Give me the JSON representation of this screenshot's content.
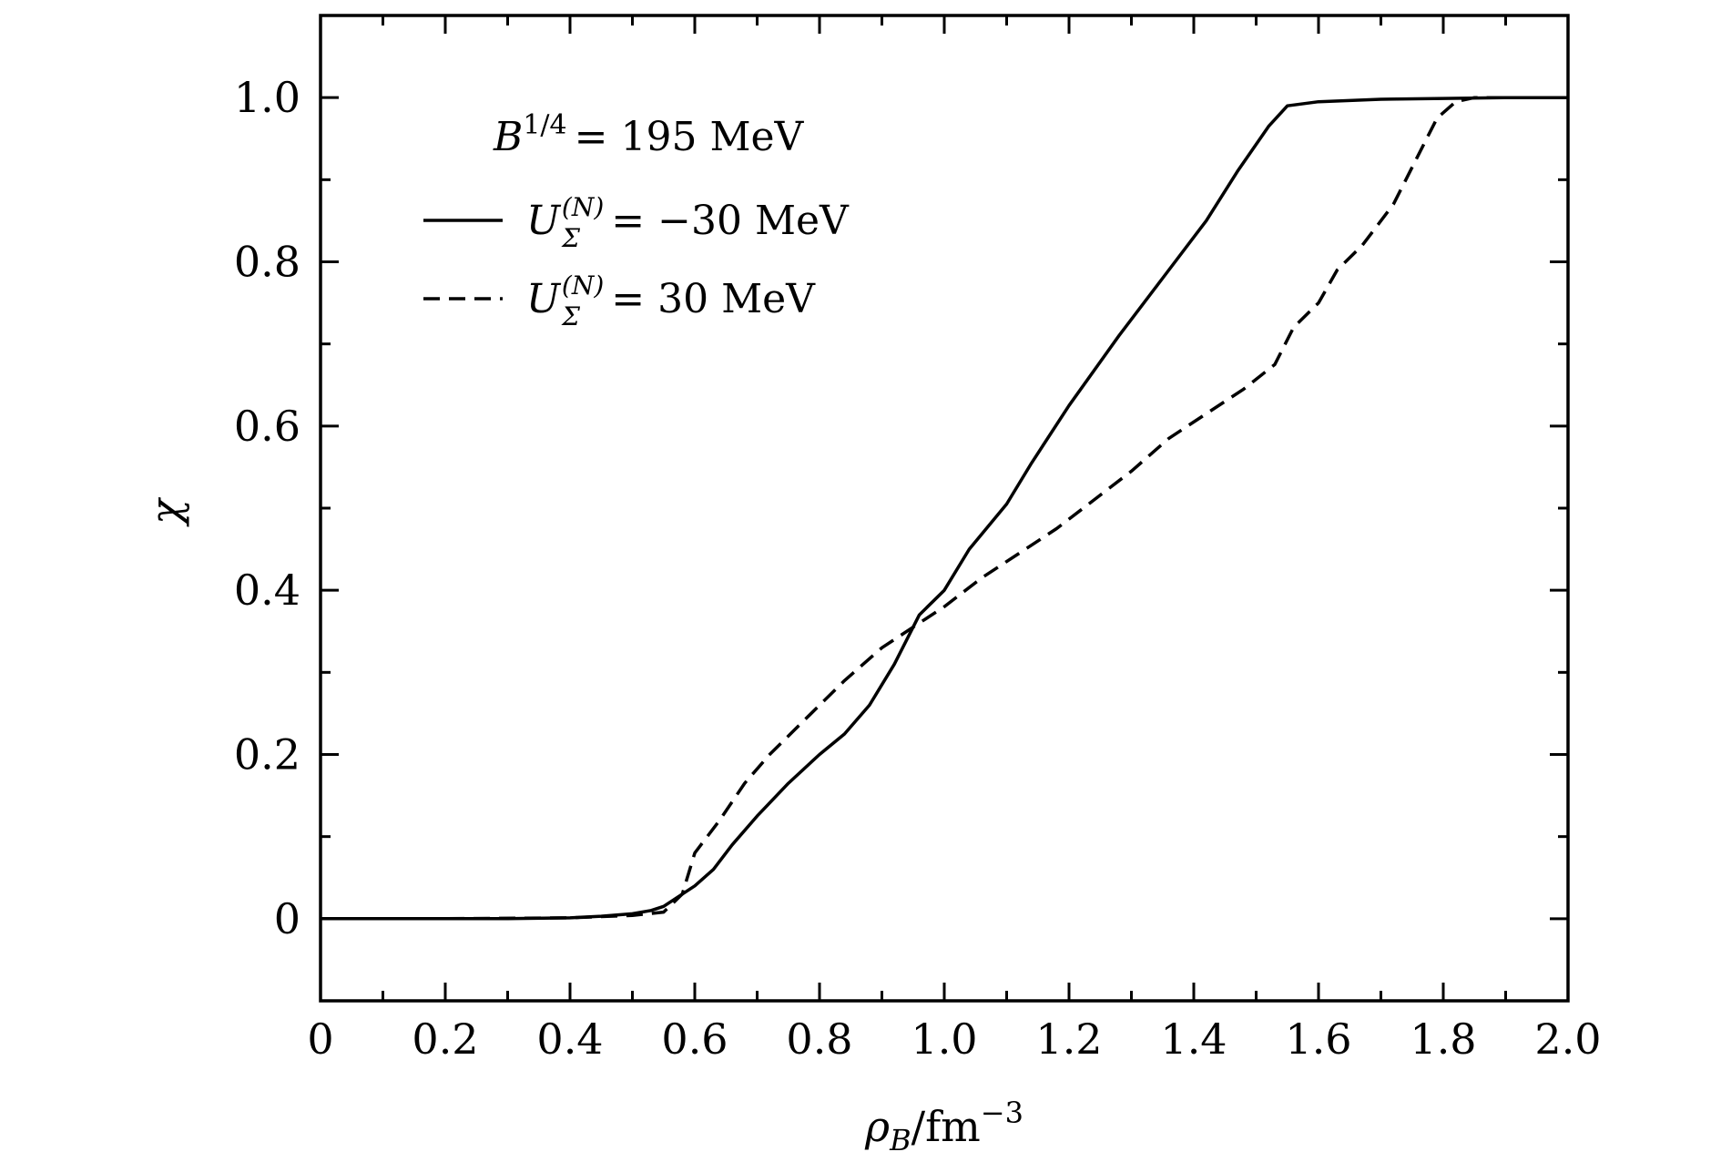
{
  "chart_data": {
    "type": "line",
    "xlabel": "ρB/fm−3",
    "xlabel_main": "ρ",
    "xlabel_sub": "B",
    "xlabel_unit": "/fm",
    "xlabel_sup": "−3",
    "ylabel": "χ",
    "xlim": [
      0,
      2.0
    ],
    "ylim": [
      -0.1,
      1.1
    ],
    "xticks": [
      {
        "value": 0,
        "label": "0"
      },
      {
        "value": 0.2,
        "label": "0.2"
      },
      {
        "value": 0.4,
        "label": "0.4"
      },
      {
        "value": 0.6,
        "label": "0.6"
      },
      {
        "value": 0.8,
        "label": "0.8"
      },
      {
        "value": 1.0,
        "label": "1.0"
      },
      {
        "value": 1.2,
        "label": "1.2"
      },
      {
        "value": 1.4,
        "label": "1.4"
      },
      {
        "value": 1.6,
        "label": "1.6"
      },
      {
        "value": 1.8,
        "label": "1.8"
      },
      {
        "value": 2.0,
        "label": "2.0"
      }
    ],
    "yticks": [
      {
        "value": 0,
        "label": "0"
      },
      {
        "value": 0.2,
        "label": "0.2"
      },
      {
        "value": 0.4,
        "label": "0.4"
      },
      {
        "value": 0.6,
        "label": "0.6"
      },
      {
        "value": 0.8,
        "label": "0.8"
      },
      {
        "value": 1.0,
        "label": "1.0"
      }
    ],
    "x_minor_step": 0.1,
    "y_minor_step": 0.1,
    "legend": {
      "title_main": "B",
      "title_sup": "1/4",
      "title_rest": "= 195 MeV",
      "placement": "top-left"
    },
    "series": [
      {
        "name": "UΣ(N) = −30 MeV",
        "label_main": "U",
        "label_sub": "Σ",
        "label_sup": "(N)",
        "label_rest": "= −30 MeV",
        "style": "solid",
        "x": [
          0,
          0.1,
          0.2,
          0.3,
          0.4,
          0.45,
          0.5,
          0.53,
          0.55,
          0.6,
          0.63,
          0.66,
          0.7,
          0.75,
          0.8,
          0.84,
          0.88,
          0.92,
          0.96,
          1.0,
          1.04,
          1.1,
          1.14,
          1.2,
          1.28,
          1.35,
          1.42,
          1.47,
          1.52,
          1.55,
          1.6,
          1.7,
          1.8,
          1.9,
          2.0
        ],
        "y": [
          0,
          0,
          0,
          0,
          0.001,
          0.003,
          0.006,
          0.01,
          0.015,
          0.04,
          0.06,
          0.09,
          0.125,
          0.165,
          0.2,
          0.225,
          0.26,
          0.31,
          0.37,
          0.4,
          0.45,
          0.505,
          0.555,
          0.625,
          0.71,
          0.78,
          0.85,
          0.91,
          0.965,
          0.99,
          0.995,
          0.998,
          0.999,
          1.0,
          1.0
        ]
      },
      {
        "name": "UΣ(N) = 30 MeV",
        "label_main": "U",
        "label_sub": "Σ",
        "label_sup": "(N)",
        "label_rest": "= 30 MeV",
        "style": "dashed",
        "x": [
          0,
          0.2,
          0.4,
          0.5,
          0.55,
          0.58,
          0.6,
          0.64,
          0.68,
          0.72,
          0.78,
          0.84,
          0.9,
          0.96,
          1.0,
          1.06,
          1.12,
          1.18,
          1.24,
          1.3,
          1.36,
          1.42,
          1.48,
          1.53,
          1.56,
          1.6,
          1.63,
          1.67,
          1.72,
          1.76,
          1.79,
          1.82,
          1.85,
          1.9,
          2.0
        ],
        "y": [
          0,
          0,
          0.001,
          0.004,
          0.008,
          0.03,
          0.08,
          0.12,
          0.165,
          0.2,
          0.245,
          0.29,
          0.33,
          0.36,
          0.38,
          0.415,
          0.445,
          0.475,
          0.51,
          0.545,
          0.585,
          0.615,
          0.645,
          0.675,
          0.72,
          0.75,
          0.79,
          0.82,
          0.87,
          0.93,
          0.975,
          0.995,
          1.0,
          1.0,
          1.0
        ]
      }
    ]
  }
}
